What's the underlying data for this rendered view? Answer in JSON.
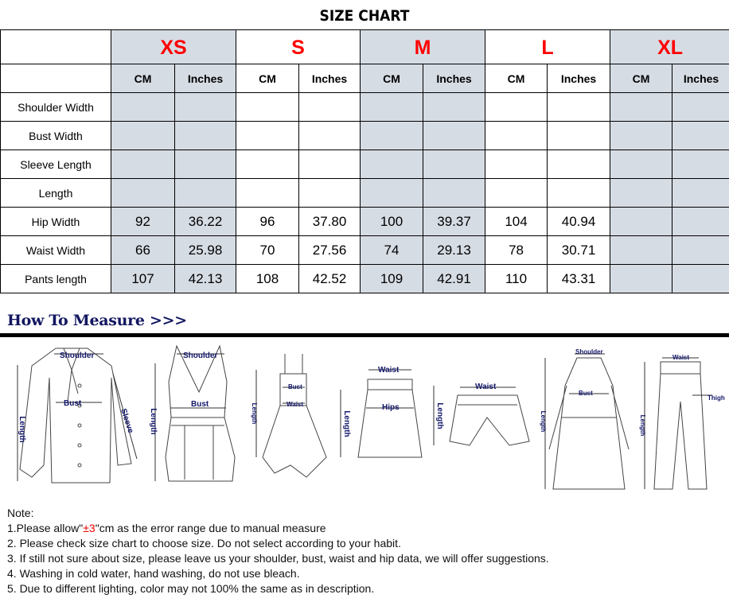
{
  "title": "SIZE CHART",
  "sizes": [
    "XS",
    "S",
    "M",
    "L",
    "XL"
  ],
  "unit_labels": {
    "cm": "CM",
    "inches": "Inches"
  },
  "rows": [
    {
      "label": "Shoulder Width",
      "values": [
        "",
        "",
        "",
        "",
        "",
        "",
        "",
        "",
        "",
        ""
      ]
    },
    {
      "label": "Bust Width",
      "values": [
        "",
        "",
        "",
        "",
        "",
        "",
        "",
        "",
        "",
        ""
      ]
    },
    {
      "label": "Sleeve Length",
      "values": [
        "",
        "",
        "",
        "",
        "",
        "",
        "",
        "",
        "",
        ""
      ]
    },
    {
      "label": "Length",
      "values": [
        "",
        "",
        "",
        "",
        "",
        "",
        "",
        "",
        "",
        ""
      ]
    },
    {
      "label": "Hip Width",
      "values": [
        "92",
        "36.22",
        "96",
        "37.80",
        "100",
        "39.37",
        "104",
        "40.94",
        "",
        ""
      ]
    },
    {
      "label": "Waist Width",
      "values": [
        "66",
        "25.98",
        "70",
        "27.56",
        "74",
        "29.13",
        "78",
        "30.71",
        "",
        ""
      ]
    },
    {
      "label": "Pants length",
      "values": [
        "107",
        "42.13",
        "108",
        "42.52",
        "109",
        "42.91",
        "110",
        "43.31",
        "",
        ""
      ]
    }
  ],
  "colors": {
    "shade": "#d6dce4",
    "size_text": "#ff0000",
    "heading": "#121660"
  },
  "how_to_measure": "How To Measure >>>",
  "figures": {
    "shirt": {
      "shoulder": "Shoulder",
      "bust": "Bust",
      "length": "Length",
      "sleeve": "Sleeve"
    },
    "tank": {
      "shoulder": "Shoulder",
      "bust": "Bust",
      "length": "Length"
    },
    "dress": {
      "bust": "Bust",
      "waist": "Waist",
      "length": "Length"
    },
    "skirt": {
      "waist": "Waist",
      "hips": "Hips",
      "length": "Length"
    },
    "shorts": {
      "waist": "Waist",
      "length": "Length"
    },
    "coat": {
      "shoulder": "Shoulder",
      "bust": "Bust",
      "length": "Length"
    },
    "pants": {
      "waist": "Waist",
      "thigh": "Thigh",
      "length": "Length"
    }
  },
  "notes": {
    "heading": "Note:",
    "n1_pre": "1.Please allow\"",
    "n1_red": "±3",
    "n1_post": "\"cm as the error range due to manual measure",
    "n2": "2. Please check size chart to choose size. Do not select according to your habit.",
    "n3": "3. If still not sure about size, please leave us your shoulder, bust, waist and hip data, we will offer suggestions.",
    "n4": "4. Washing in cold water, hand washing, do not use bleach.",
    "n5": "5. Due to different lighting, color may not 100% the same as in description."
  }
}
